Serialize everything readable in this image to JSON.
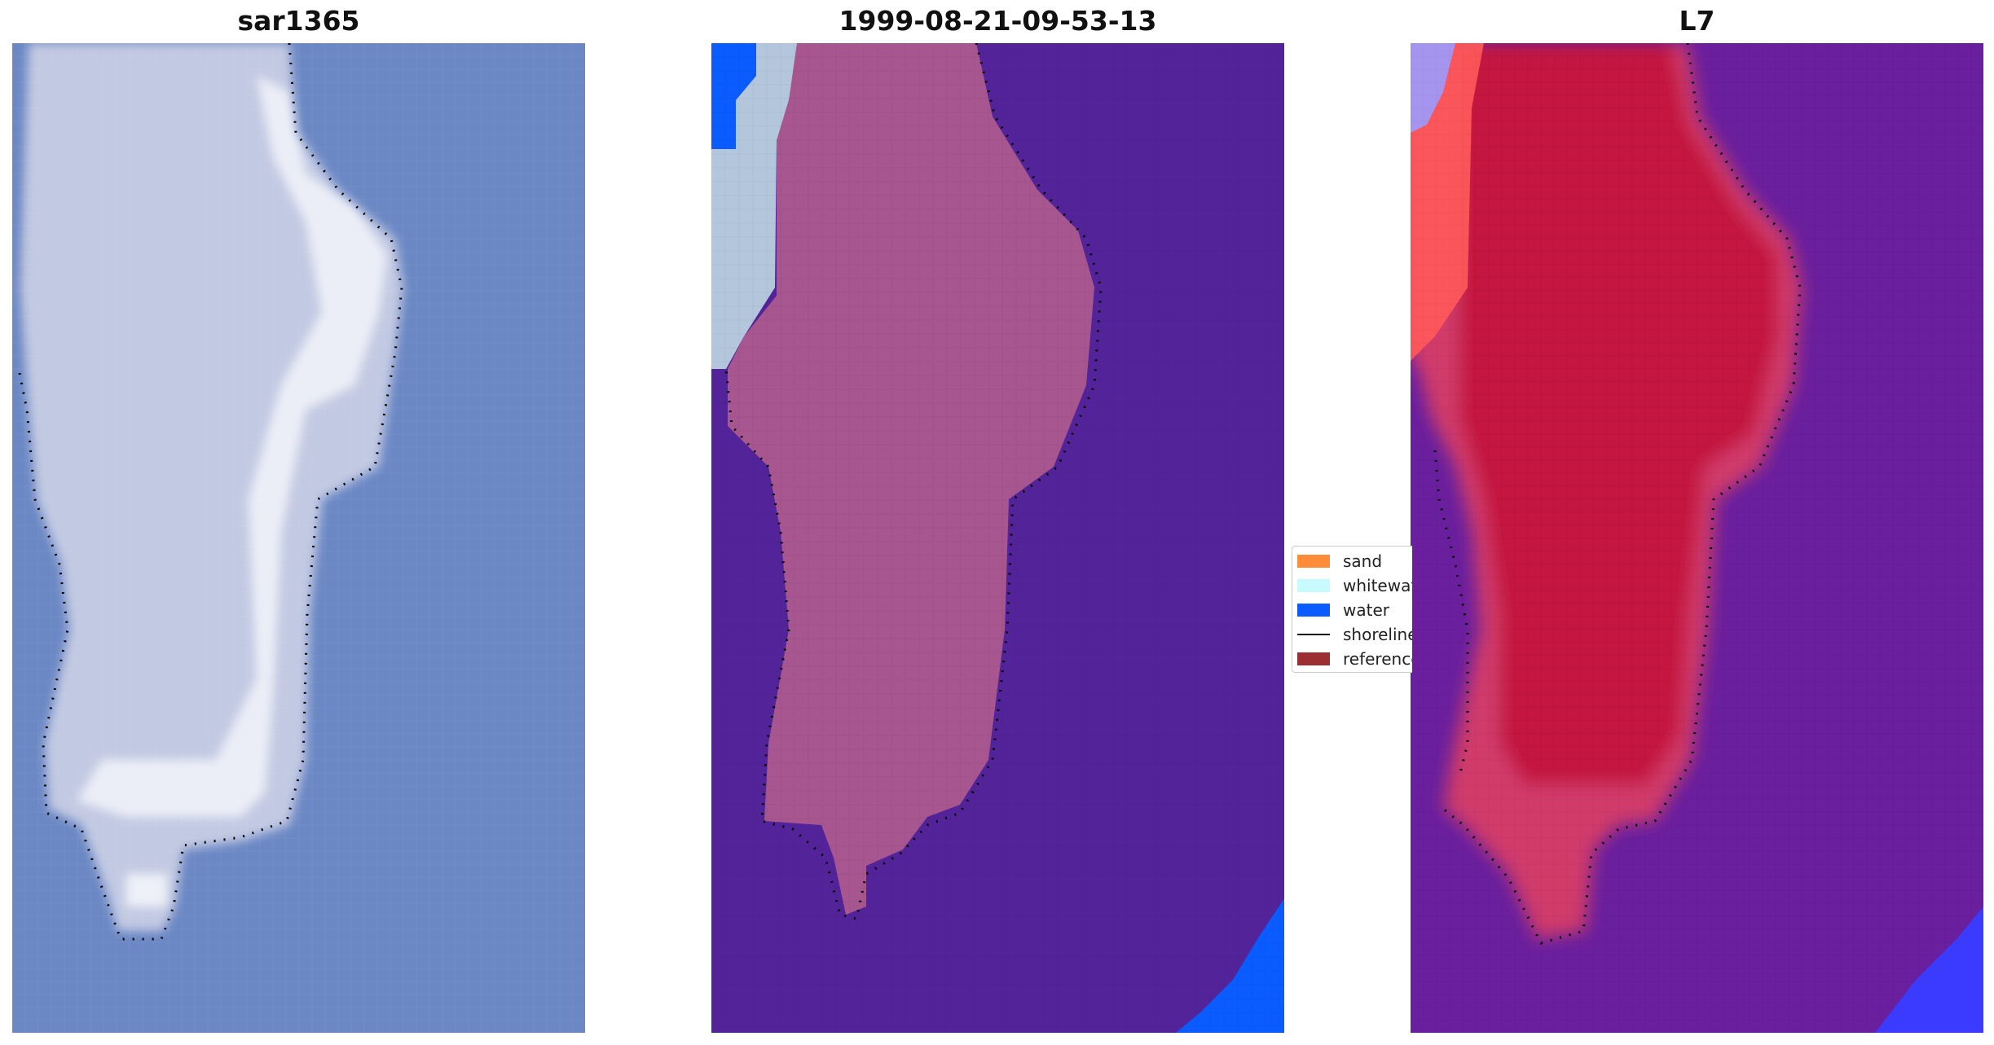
{
  "panels": [
    {
      "title": "sar1365"
    },
    {
      "title": "1999-08-21-09-53-13"
    },
    {
      "title": "L7"
    }
  ],
  "legend": {
    "items": [
      {
        "label": "sand",
        "color": "#ff8c3a",
        "kind": "patch"
      },
      {
        "label": "whitewater",
        "color": "#c8fbff",
        "kind": "patch"
      },
      {
        "label": "water",
        "color": "#0a5cff",
        "kind": "patch"
      },
      {
        "label": "shoreline",
        "color": "#000000",
        "kind": "line"
      },
      {
        "label": "reference",
        "color": "#9b2f34",
        "kind": "patch"
      }
    ]
  },
  "colors": {
    "rgb_water": "#6b88c4",
    "rgb_land": "#c9cfe6",
    "rgb_highlight": "#eef1f8",
    "class_water_background": "#532399",
    "class_sand_overlay": "#a85690",
    "class_water_edge": "#0a5cff",
    "class_whitewater": "#b3c6dc",
    "index_water": "#6a1f9e",
    "index_land": "#c4123f",
    "index_left_edge": "#ff5a5a",
    "index_blue_corner": "#3b3bff"
  }
}
